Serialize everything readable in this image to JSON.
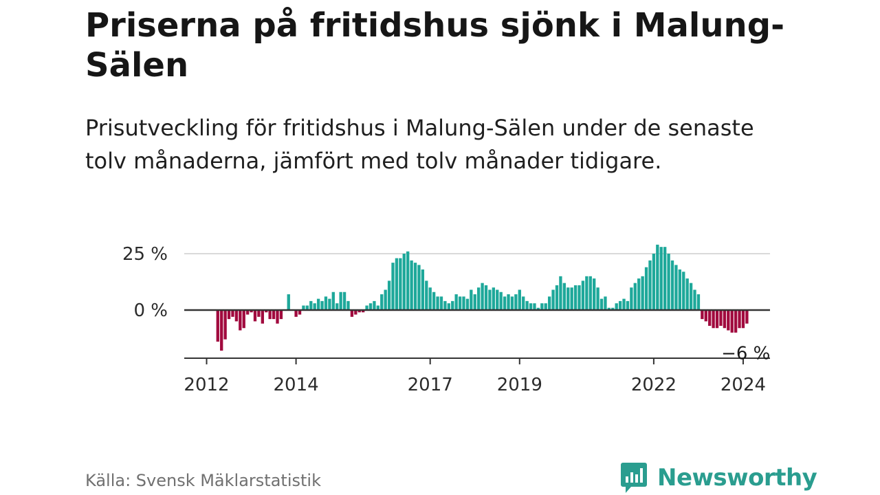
{
  "title": "Priserna på fritidshus sjönk i Malung-Sälen",
  "subtitle": "Prisutveckling för fritidshus i Malung-Sälen under de senaste tolv månaderna, jämfört med tolv månader tidigare.",
  "source": "Källa: Svensk Mäklarstatistik",
  "brand": {
    "name": "Newsworthy",
    "icon": "newsworthy-logo-icon",
    "color": "#2a9d8f"
  },
  "colors": {
    "positive": "#1ea89a",
    "negative": "#a10a3e",
    "grid": "#d9d9d9",
    "baseline": "#333333",
    "axis": "#333333"
  },
  "chart_data": {
    "type": "bar",
    "title": "",
    "xlabel": "",
    "ylabel": "",
    "y_ticks": [
      {
        "value": 0,
        "label": "0 %"
      },
      {
        "value": 25,
        "label": "25 %"
      }
    ],
    "x_ticks": [
      {
        "value": 2012,
        "label": "2012"
      },
      {
        "value": 2014,
        "label": "2014"
      },
      {
        "value": 2017,
        "label": "2017"
      },
      {
        "value": 2019,
        "label": "2019"
      },
      {
        "value": 2022,
        "label": "2022"
      },
      {
        "value": 2024,
        "label": "2024"
      }
    ],
    "xlim": [
      2011.5,
      2024.6
    ],
    "ylim": [
      -21,
      29
    ],
    "grid": true,
    "annotation": {
      "text": "−6 %",
      "value": -6
    },
    "first_period": "2012-04",
    "interval": "month",
    "values": [
      -14,
      -18,
      -13,
      -4,
      -3,
      -5,
      -9,
      -8,
      -2,
      -1,
      -5,
      -3,
      -6,
      -1,
      -4,
      -4,
      -6,
      -4,
      0,
      7,
      0,
      -3,
      -2,
      2,
      2,
      4,
      3,
      5,
      4,
      6,
      5,
      8,
      3,
      8,
      8,
      4,
      -3,
      -2,
      -1,
      -1,
      2,
      3,
      4,
      2,
      7,
      9,
      13,
      21,
      23,
      23,
      25,
      26,
      22,
      21,
      20,
      18,
      13,
      10,
      8,
      6,
      6,
      4,
      3,
      4,
      7,
      6,
      6,
      5,
      9,
      7,
      10,
      12,
      11,
      9,
      10,
      9,
      8,
      6,
      7,
      6,
      7,
      9,
      6,
      4,
      3,
      3,
      1,
      3,
      3,
      6,
      9,
      11,
      15,
      12,
      10,
      10,
      11,
      11,
      13,
      15,
      15,
      14,
      10,
      5,
      6,
      1,
      1,
      3,
      4,
      5,
      4,
      10,
      12,
      14,
      15,
      19,
      22,
      25,
      29,
      28,
      28,
      25,
      22,
      20,
      18,
      17,
      14,
      12,
      9,
      7,
      -4,
      -5,
      -7,
      -8,
      -8,
      -7,
      -8,
      -9,
      -10,
      -10,
      -8,
      -8,
      -6
    ]
  }
}
